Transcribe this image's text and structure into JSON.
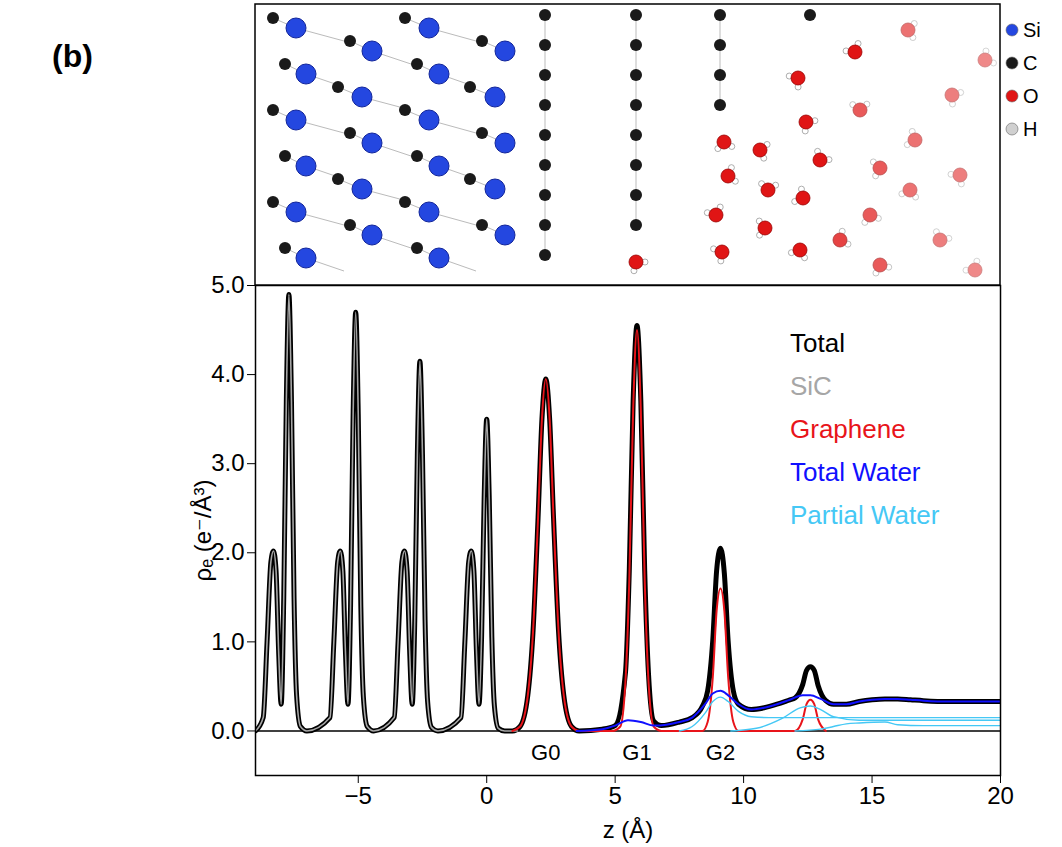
{
  "chart_data": {
    "type": "line",
    "panel_label": "(b)",
    "x_label": "z (Å)",
    "y_label": "ρₑ (e⁻/Å³)",
    "xlim": [
      -9,
      20
    ],
    "xticks": [
      -5,
      0,
      5,
      10,
      15,
      20
    ],
    "ylim": [
      -0.5,
      5
    ],
    "yticks": [
      0,
      1,
      2,
      3,
      4,
      5
    ],
    "baseline": 0,
    "legend": "top-right",
    "atom_legend": [
      {
        "label": "Si",
        "color": "#2447e0"
      },
      {
        "label": "C",
        "color": "#1a1a1a"
      },
      {
        "label": "O",
        "color": "#e01515"
      },
      {
        "label": "H",
        "color": "#d0d0d0"
      }
    ],
    "annotations": [
      {
        "text": "G0",
        "x": 2.3
      },
      {
        "text": "G1",
        "x": 5.85
      },
      {
        "text": "G2",
        "x": 9.1
      },
      {
        "text": "G3",
        "x": 12.6
      }
    ],
    "series": [
      {
        "name": "Total",
        "color": "#000000",
        "x": [
          -9,
          -8.7,
          -8.55,
          -8.4,
          -8.3,
          -8.2,
          -8.1,
          -8.0,
          -7.9,
          -7.8,
          -7.7,
          -7.6,
          -7.5,
          -7.4,
          -7.25,
          -7.0,
          -6.1,
          -5.95,
          -5.8,
          -5.7,
          -5.6,
          -5.5,
          -5.4,
          -5.3,
          -5.2,
          -5.1,
          -5.0,
          -4.9,
          -4.8,
          -4.65,
          -4.4,
          -3.6,
          -3.45,
          -3.3,
          -3.2,
          -3.1,
          -3.0,
          -2.9,
          -2.8,
          -2.7,
          -2.6,
          -2.5,
          -2.4,
          -2.3,
          -2.15,
          -1.9,
          -1.0,
          -0.85,
          -0.7,
          -0.6,
          -0.5,
          -0.4,
          -0.3,
          -0.2,
          -0.1,
          0,
          0.1,
          0.2,
          0.3,
          0.45,
          0.7,
          1.0,
          1.3,
          1.6,
          1.8,
          2.0,
          2.15,
          2.3,
          2.45,
          2.6,
          2.8,
          3.0,
          3.3,
          3.6,
          4.5,
          5.0,
          5.4,
          5.55,
          5.7,
          5.85,
          6.0,
          6.15,
          6.3,
          6.5,
          6.8,
          7.5,
          8.0,
          8.4,
          8.6,
          8.8,
          8.95,
          9.1,
          9.25,
          9.4,
          9.6,
          9.8,
          10.3,
          10.8,
          11.3,
          11.8,
          12.0,
          12.3,
          12.45,
          12.6,
          12.75,
          12.9,
          13.2,
          13.5,
          14.0,
          14.5,
          15.0,
          15.5,
          16.0,
          16.5,
          17.0,
          18.0,
          19.0,
          20.0
        ],
        "values": [
          0,
          0.15,
          1.0,
          1.9,
          2.02,
          1.8,
          0.9,
          0.3,
          1.5,
          3.7,
          4.9,
          3.7,
          1.5,
          0.4,
          0.05,
          0,
          0.15,
          1.0,
          1.9,
          2.02,
          1.8,
          0.9,
          0.3,
          1.4,
          3.55,
          4.7,
          3.55,
          1.4,
          0.38,
          0.05,
          0,
          0.15,
          1.0,
          1.9,
          2.02,
          1.8,
          0.9,
          0.3,
          1.25,
          3.1,
          4.15,
          3.1,
          1.25,
          0.33,
          0.04,
          0,
          0.15,
          1.0,
          1.9,
          2.02,
          1.8,
          0.9,
          0.3,
          1.05,
          2.6,
          3.5,
          2.6,
          1.05,
          0.28,
          0.03,
          0,
          0,
          0.05,
          0.4,
          1.1,
          2.4,
          3.5,
          3.95,
          3.5,
          2.4,
          1.1,
          0.4,
          0.05,
          0,
          0.02,
          0.06,
          0.65,
          1.8,
          3.7,
          4.55,
          3.7,
          1.8,
          0.63,
          0.11,
          0.06,
          0.1,
          0.15,
          0.28,
          0.45,
          1.02,
          1.8,
          2.05,
          1.77,
          1.0,
          0.45,
          0.3,
          0.24,
          0.26,
          0.3,
          0.35,
          0.37,
          0.52,
          0.68,
          0.72,
          0.68,
          0.51,
          0.34,
          0.3,
          0.3,
          0.33,
          0.35,
          0.36,
          0.36,
          0.35,
          0.34,
          0.33,
          0.33,
          0.33
        ]
      },
      {
        "name": "SiC",
        "color": "#a6a6a6",
        "x": [
          -9,
          -8.7,
          -8.55,
          -8.4,
          -8.3,
          -8.2,
          -8.1,
          -8.0,
          -7.9,
          -7.8,
          -7.7,
          -7.6,
          -7.5,
          -7.4,
          -7.25,
          -7.0,
          -6.1,
          -5.95,
          -5.8,
          -5.7,
          -5.6,
          -5.5,
          -5.4,
          -5.3,
          -5.2,
          -5.1,
          -5.0,
          -4.9,
          -4.8,
          -4.65,
          -4.4,
          -3.6,
          -3.45,
          -3.3,
          -3.2,
          -3.1,
          -3.0,
          -2.9,
          -2.8,
          -2.7,
          -2.6,
          -2.5,
          -2.4,
          -2.3,
          -2.15,
          -1.9,
          -1.0,
          -0.85,
          -0.7,
          -0.6,
          -0.5,
          -0.4,
          -0.3,
          -0.2,
          -0.1,
          0,
          0.1,
          0.2,
          0.3,
          0.45,
          0.7,
          1.2
        ],
        "values": [
          0,
          0.15,
          1.0,
          1.9,
          2.02,
          1.8,
          0.9,
          0.3,
          1.5,
          3.7,
          4.9,
          3.7,
          1.5,
          0.4,
          0.05,
          0,
          0.15,
          1.0,
          1.9,
          2.02,
          1.8,
          0.9,
          0.3,
          1.4,
          3.55,
          4.7,
          3.55,
          1.4,
          0.38,
          0.05,
          0,
          0.15,
          1.0,
          1.9,
          2.02,
          1.8,
          0.9,
          0.3,
          1.25,
          3.1,
          4.15,
          3.1,
          1.25,
          0.33,
          0.04,
          0,
          0.15,
          1.0,
          1.9,
          2.02,
          1.8,
          0.9,
          0.3,
          1.05,
          2.6,
          3.5,
          2.6,
          1.05,
          0.28,
          0.03,
          0,
          0
        ]
      },
      {
        "name": "Graphene",
        "color": "#e8141a",
        "x": [
          1.0,
          1.3,
          1.6,
          1.8,
          2.0,
          2.15,
          2.3,
          2.45,
          2.6,
          2.8,
          3.0,
          3.3,
          3.6,
          4.9,
          5.2,
          5.4,
          5.55,
          5.7,
          5.85,
          6.0,
          6.15,
          6.3,
          6.5,
          6.8,
          8.4,
          8.6,
          8.8,
          8.95,
          9.1,
          9.25,
          9.4,
          9.6,
          9.8,
          12.0,
          12.3,
          12.45,
          12.6,
          12.75,
          12.9,
          13.2
        ],
        "values": [
          0,
          0.05,
          0.4,
          1.1,
          2.4,
          3.5,
          3.95,
          3.5,
          2.4,
          1.1,
          0.4,
          0.05,
          0,
          0,
          0.05,
          0.55,
          1.7,
          3.6,
          4.5,
          3.6,
          1.7,
          0.55,
          0.05,
          0,
          0,
          0.1,
          0.6,
          1.35,
          1.6,
          1.35,
          0.6,
          0.1,
          0,
          0,
          0.13,
          0.3,
          0.35,
          0.3,
          0.13,
          0
        ]
      },
      {
        "name": "Total Water",
        "color": "#1010ff",
        "x": [
          3.5,
          4.5,
          5.0,
          5.5,
          6.0,
          6.5,
          7.0,
          7.5,
          8.0,
          8.5,
          8.8,
          9.1,
          9.4,
          9.8,
          10.3,
          10.8,
          11.3,
          11.8,
          12.3,
          12.6,
          13.0,
          13.5,
          14.0,
          14.5,
          15.0,
          15.5,
          16.0,
          16.5,
          17.0,
          18.0,
          19.0,
          20.0
        ],
        "values": [
          0,
          0.02,
          0.06,
          0.12,
          0.1,
          0.06,
          0.07,
          0.1,
          0.15,
          0.3,
          0.42,
          0.45,
          0.4,
          0.3,
          0.24,
          0.26,
          0.3,
          0.35,
          0.4,
          0.4,
          0.36,
          0.3,
          0.3,
          0.33,
          0.35,
          0.36,
          0.36,
          0.35,
          0.34,
          0.33,
          0.33,
          0.33
        ]
      },
      {
        "name": "Partial Water",
        "color": "#45c8f5",
        "x": [
          7.5,
          8.0,
          8.5,
          8.8,
          9.1,
          9.4,
          9.8,
          10.3,
          11,
          12,
          13,
          14,
          16,
          18,
          20
        ],
        "values": [
          0,
          0.05,
          0.2,
          0.33,
          0.38,
          0.33,
          0.22,
          0.16,
          0.15,
          0.15,
          0.15,
          0.15,
          0.15,
          0.15,
          0.15
        ]
      },
      {
        "name": "Partial Water",
        "color": "#45c8f5",
        "x": [
          9.5,
          10.5,
          11.5,
          12.2,
          12.6,
          13.0,
          13.5,
          14.5,
          16,
          18,
          20
        ],
        "values": [
          0,
          0.03,
          0.14,
          0.26,
          0.28,
          0.24,
          0.16,
          0.12,
          0.12,
          0.12,
          0.12
        ]
      },
      {
        "name": "Partial Water",
        "color": "#45c8f5",
        "x": [
          12,
          13,
          13.5,
          14,
          14.5,
          15.5,
          16,
          17,
          18,
          20
        ],
        "values": [
          0,
          0.02,
          0.05,
          0.08,
          0.09,
          0.1,
          0.07,
          0.06,
          0.06,
          0.06
        ]
      }
    ]
  }
}
